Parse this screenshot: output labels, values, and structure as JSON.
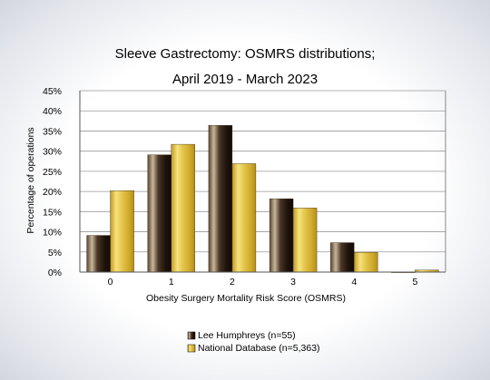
{
  "chart_data": {
    "type": "bar",
    "title_lines": [
      "Sleeve Gastrectomy: OSMRS distributions;",
      "April 2019 - March 2023"
    ],
    "xlabel": "Obesity Surgery Mortality Risk Score (OSMRS)",
    "ylabel": "Percentage of operations",
    "categories": [
      "0",
      "1",
      "2",
      "3",
      "4",
      "5"
    ],
    "ylim": [
      0,
      45
    ],
    "ytick_step": 5,
    "ytick_labels": [
      "0%",
      "5%",
      "10%",
      "15%",
      "20%",
      "25%",
      "30%",
      "35%",
      "40%",
      "45%"
    ],
    "grid": true,
    "legend_position": "bottom",
    "series": [
      {
        "name": "Lee Humphreys (n=55)",
        "values": [
          9.1,
          29.1,
          36.4,
          18.2,
          7.3,
          0
        ],
        "color": "#2a1a10"
      },
      {
        "name": "National Database (n=5,363)",
        "values": [
          20.2,
          31.7,
          26.9,
          15.9,
          4.9,
          0.5
        ],
        "color": "#d4b12a"
      }
    ]
  }
}
